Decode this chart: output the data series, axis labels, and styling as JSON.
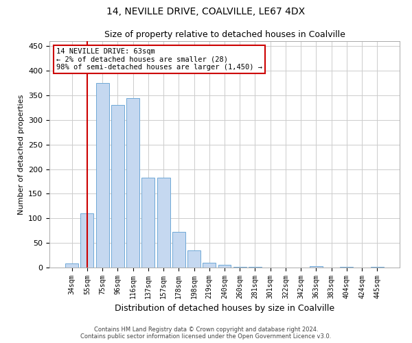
{
  "title1": "14, NEVILLE DRIVE, COALVILLE, LE67 4DX",
  "title2": "Size of property relative to detached houses in Coalville",
  "xlabel": "Distribution of detached houses by size in Coalville",
  "ylabel": "Number of detached properties",
  "categories": [
    "34sqm",
    "55sqm",
    "75sqm",
    "96sqm",
    "116sqm",
    "137sqm",
    "157sqm",
    "178sqm",
    "198sqm",
    "219sqm",
    "240sqm",
    "260sqm",
    "281sqm",
    "301sqm",
    "322sqm",
    "342sqm",
    "363sqm",
    "383sqm",
    "404sqm",
    "424sqm",
    "445sqm"
  ],
  "values": [
    8,
    110,
    375,
    330,
    345,
    183,
    183,
    73,
    35,
    10,
    6,
    2,
    1,
    0,
    0,
    0,
    3,
    0,
    2,
    0,
    2
  ],
  "bar_color": "#c5d8f0",
  "bar_edge_color": "#6fa8d6",
  "vline_color": "#cc0000",
  "vline_pos": 1.5,
  "annotation_text": "14 NEVILLE DRIVE: 63sqm\n← 2% of detached houses are smaller (28)\n98% of semi-detached houses are larger (1,450) →",
  "annotation_box_color": "#ffffff",
  "annotation_box_edge": "#cc0000",
  "ylim": [
    0,
    460
  ],
  "yticks": [
    0,
    50,
    100,
    150,
    200,
    250,
    300,
    350,
    400,
    450
  ],
  "footer1": "Contains HM Land Registry data © Crown copyright and database right 2024.",
  "footer2": "Contains public sector information licensed under the Open Government Licence v3.0.",
  "background_color": "#ffffff",
  "grid_color": "#cccccc",
  "title1_fontsize": 10,
  "title2_fontsize": 9,
  "ylabel_fontsize": 8,
  "xlabel_fontsize": 9,
  "tick_fontsize": 7,
  "annotation_fontsize": 7.5
}
